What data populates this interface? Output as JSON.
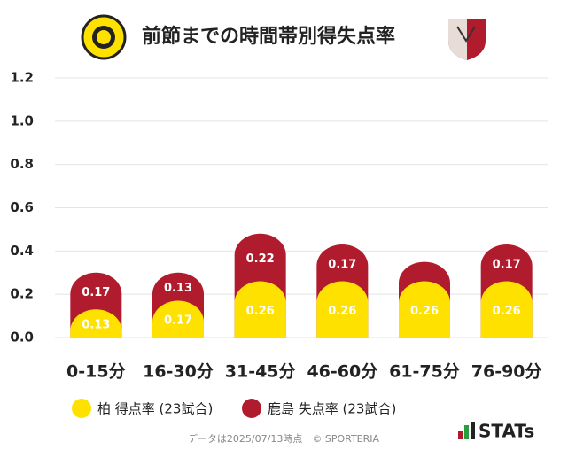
{
  "chart_data": {
    "type": "stacked-bar",
    "title": "前節までの時間帯別得失点率",
    "categories": [
      "0-15分",
      "16-30分",
      "31-45分",
      "46-60分",
      "61-75分",
      "76-90分"
    ],
    "series": [
      {
        "name": "柏 得点率 (23試合)",
        "color": "#ffe100",
        "values": [
          0.13,
          0.17,
          0.26,
          0.26,
          0.26,
          0.26
        ],
        "value_labels": [
          "0.13",
          "0.17",
          "0.26",
          "0.26",
          "0.26",
          "0.26"
        ]
      },
      {
        "name": "鹿島 失点率 (23試合)",
        "color": "#b01c2e",
        "values": [
          0.17,
          0.13,
          0.22,
          0.17,
          0.09,
          0.17
        ],
        "value_labels": [
          "0.17",
          "0.13",
          "0.22",
          "0.17",
          null,
          "0.17"
        ]
      }
    ],
    "ylim": [
      0,
      1.2
    ],
    "yticks": [
      {
        "value": 0,
        "label": "0.0"
      },
      0.2,
      0.4,
      0.6,
      0.8,
      {
        "value": 1,
        "label": "1.0"
      },
      1.2
    ],
    "grid": true,
    "footnote": "データは2025/07/13時点　© SPORTERIA",
    "brand": "STATs"
  }
}
